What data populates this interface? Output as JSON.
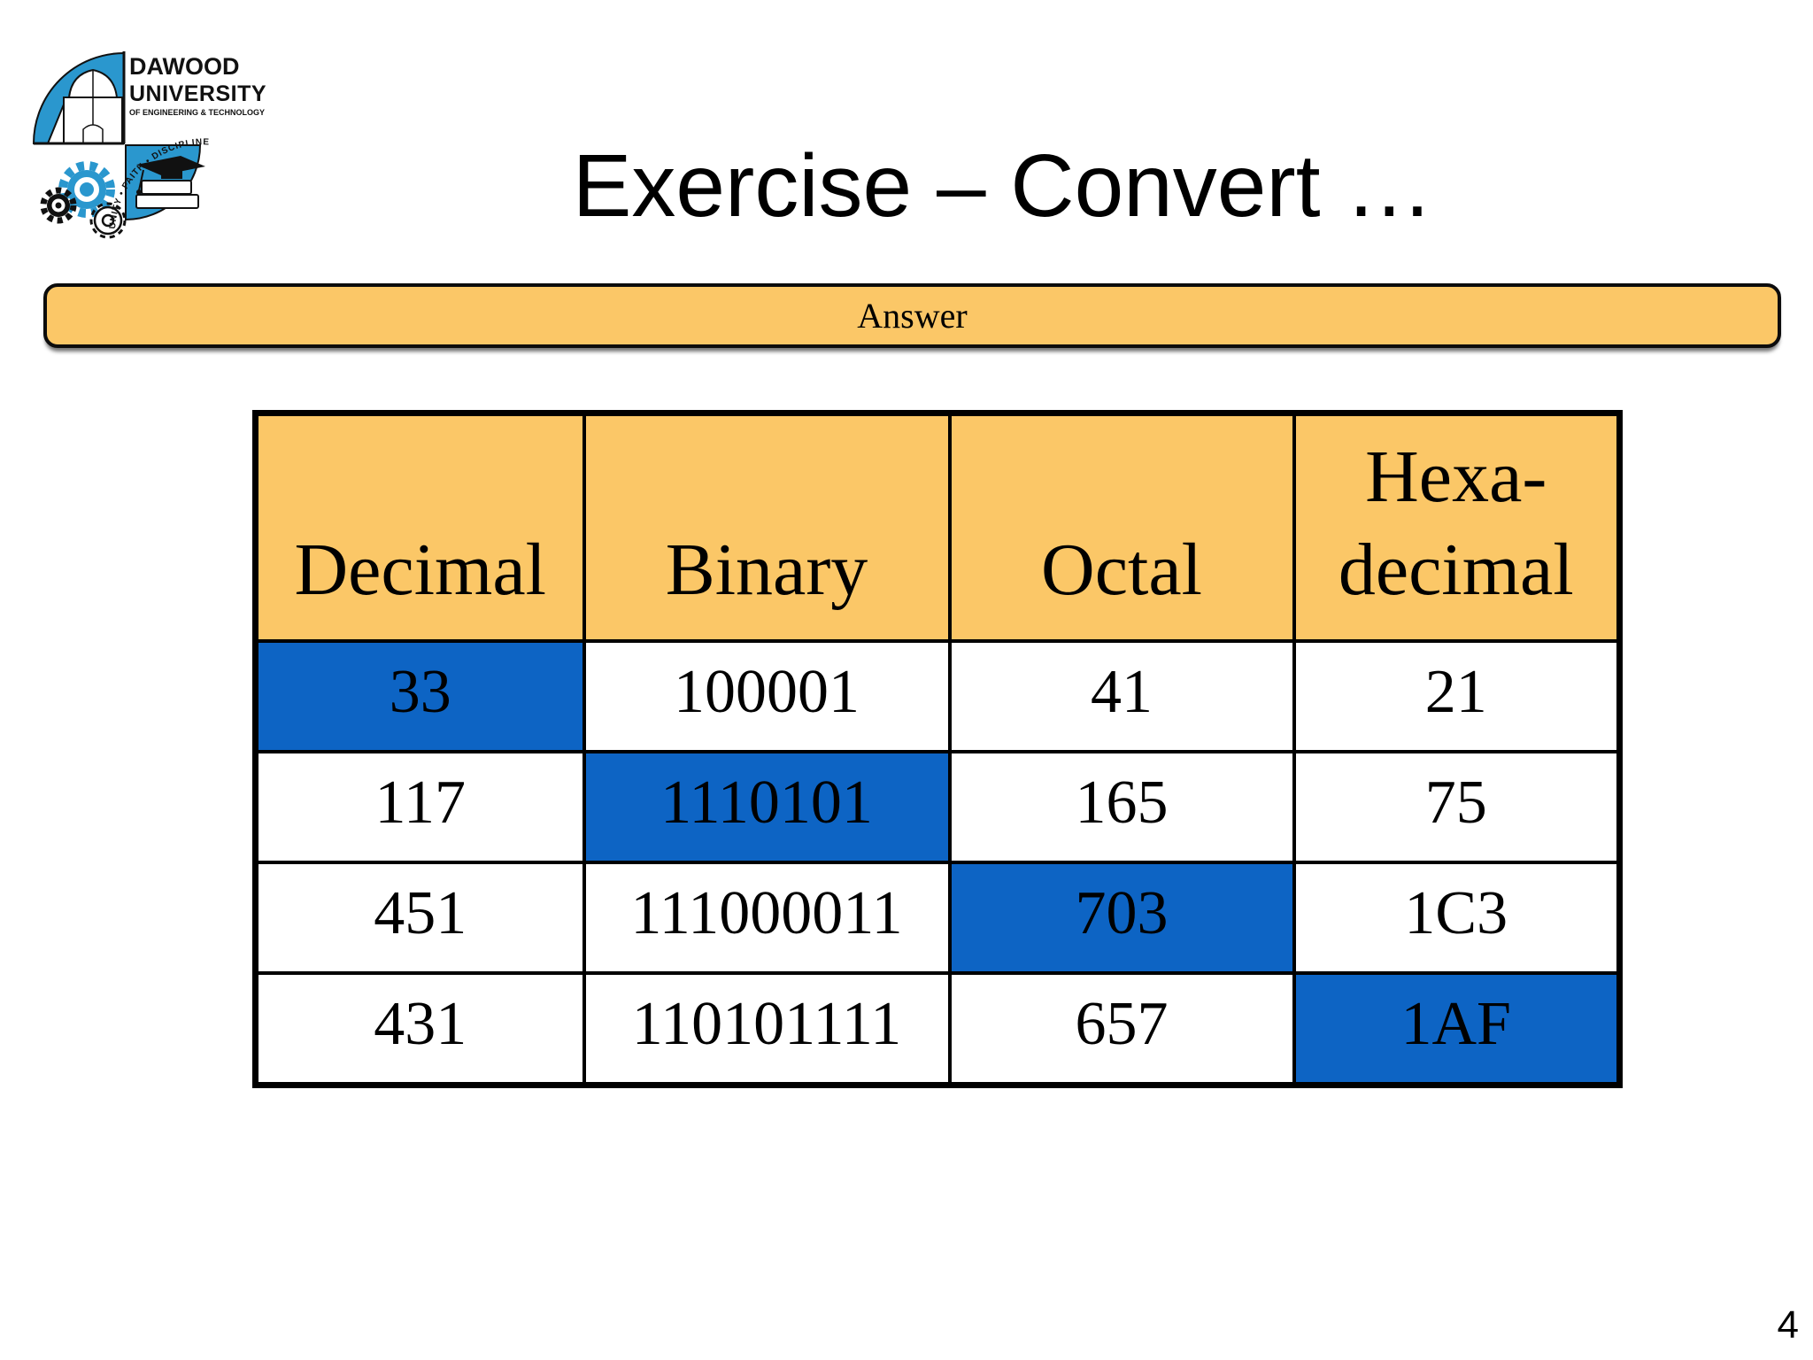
{
  "slide": {
    "title": "Exercise – Convert …",
    "page_number": "4"
  },
  "logo": {
    "name_line1": "DAWOOD",
    "name_line2": "UNIVERSITY",
    "name_line3": "OF ENGINEERING & TECHNOLOGY",
    "motto": "UNITY • FAITH • DISCIPLINE"
  },
  "banner": {
    "label": "Answer"
  },
  "table": {
    "headers": [
      "Decimal",
      "Binary",
      "Octal",
      "Hexa-decimal"
    ],
    "rows": [
      {
        "cells": [
          "33",
          "100001",
          "41",
          "21"
        ],
        "highlight_col": 0
      },
      {
        "cells": [
          "117",
          "1110101",
          "165",
          "75"
        ],
        "highlight_col": 1
      },
      {
        "cells": [
          "451",
          "111000011",
          "703",
          "1C3"
        ],
        "highlight_col": 2
      },
      {
        "cells": [
          "431",
          "110101111",
          "657",
          "1AF"
        ],
        "highlight_col": 3
      }
    ]
  },
  "colors": {
    "header_fill": "#FBC767",
    "banner_fill": "#FBC767",
    "highlight_fill": "#0D64C4",
    "logo_blue": "#2A97CE",
    "text": "#000000"
  }
}
